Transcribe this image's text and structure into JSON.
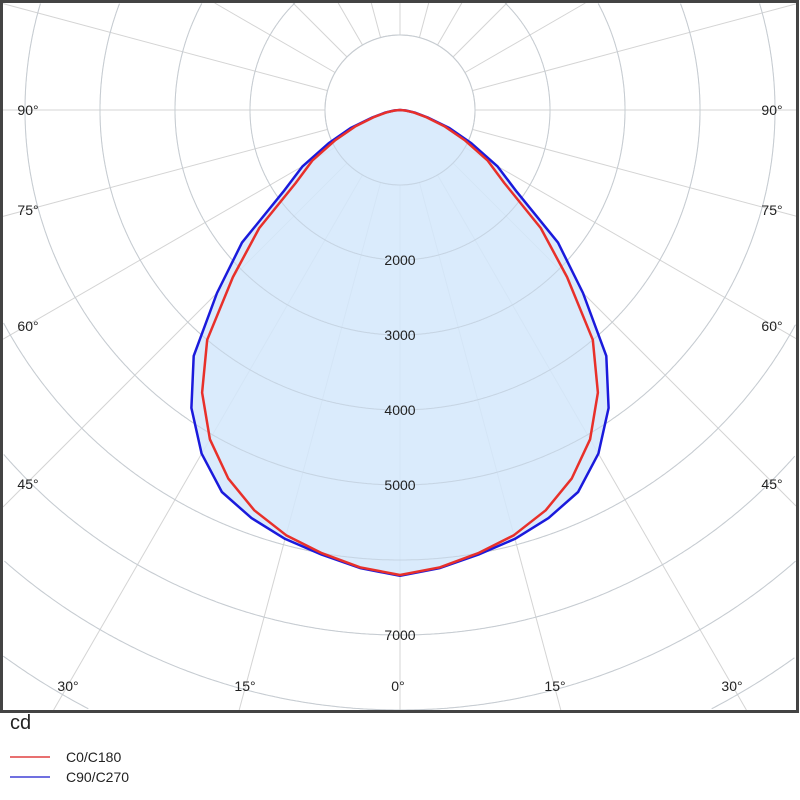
{
  "chart_data": {
    "type": "polar",
    "unit": "cd",
    "radial_ticks": [
      1000,
      2000,
      3000,
      4000,
      5000,
      6000,
      7000,
      8000,
      9000,
      10000
    ],
    "radial_tick_labels": [
      "2000",
      "3000",
      "4000",
      "5000",
      "7000"
    ],
    "angle_labels_side": [
      "90°",
      "75°",
      "60°",
      "45°"
    ],
    "angle_labels_bottom": [
      "30°",
      "15°",
      "0°",
      "15°",
      "30°"
    ],
    "grid": true,
    "angles_deg": [
      0,
      5,
      10,
      15,
      20,
      25,
      30,
      35,
      40,
      45,
      50,
      55,
      60,
      65,
      70,
      75,
      80,
      85,
      90
    ],
    "series": [
      {
        "name": "C0/C180",
        "color": "#e8302a",
        "values": [
          6200,
          6120,
          6000,
          5870,
          5680,
          5420,
          5070,
          4600,
          4000,
          3150,
          2450,
          1700,
          1350,
          950,
          630,
          350,
          180,
          70,
          0
        ]
      },
      {
        "name": "C90/C270",
        "color": "#1a1adc",
        "values": [
          6210,
          6130,
          6020,
          5920,
          5790,
          5620,
          5290,
          4850,
          4280,
          3450,
          2750,
          1900,
          1500,
          1050,
          700,
          380,
          200,
          80,
          0
        ]
      }
    ],
    "fill_color": "#d4e8fb",
    "legend_position": "bottom-left"
  }
}
